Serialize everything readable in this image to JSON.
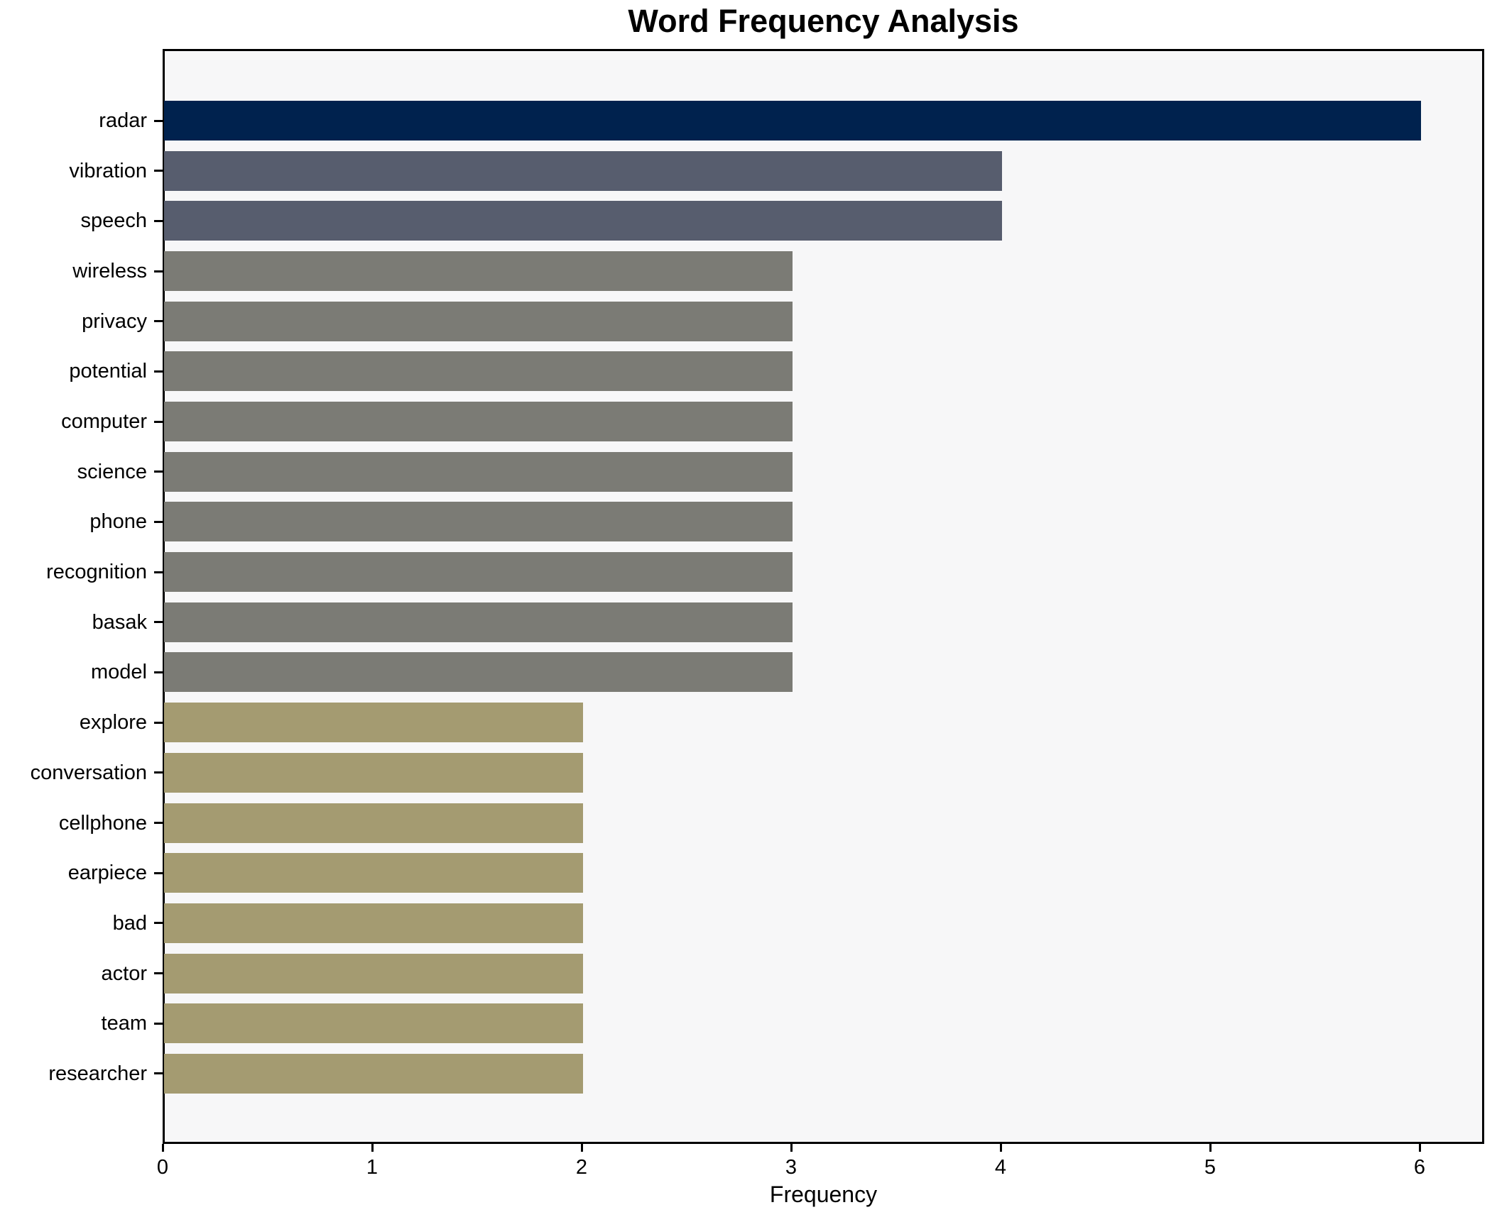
{
  "chart_data": {
    "type": "bar",
    "orientation": "horizontal",
    "title": "Word Frequency Analysis",
    "xlabel": "Frequency",
    "ylabel": "",
    "xlim": [
      0,
      6.3
    ],
    "xticks": [
      "0",
      "1",
      "2",
      "3",
      "4",
      "5",
      "6"
    ],
    "grid": false,
    "legend": false,
    "plot_background": "#f7f7f8",
    "figure_background": "#ffffff",
    "spine_color": "#000000",
    "categories": [
      "radar",
      "vibration",
      "speech",
      "wireless",
      "privacy",
      "potential",
      "computer",
      "science",
      "phone",
      "recognition",
      "basak",
      "model",
      "explore",
      "conversation",
      "cellphone",
      "earpiece",
      "bad",
      "actor",
      "team",
      "researcher"
    ],
    "values": [
      6,
      4,
      4,
      3,
      3,
      3,
      3,
      3,
      3,
      3,
      3,
      3,
      2,
      2,
      2,
      2,
      2,
      2,
      2,
      2
    ],
    "bar_colors": [
      "#00224E",
      "#575D6E",
      "#575D6E",
      "#7B7B75",
      "#7B7B75",
      "#7B7B75",
      "#7B7B75",
      "#7B7B75",
      "#7B7B75",
      "#7B7B75",
      "#7B7B75",
      "#7B7B75",
      "#A49B71",
      "#A49B71",
      "#A49B71",
      "#A49B71",
      "#A49B71",
      "#A49B71",
      "#A49B71",
      "#A49B71"
    ]
  }
}
